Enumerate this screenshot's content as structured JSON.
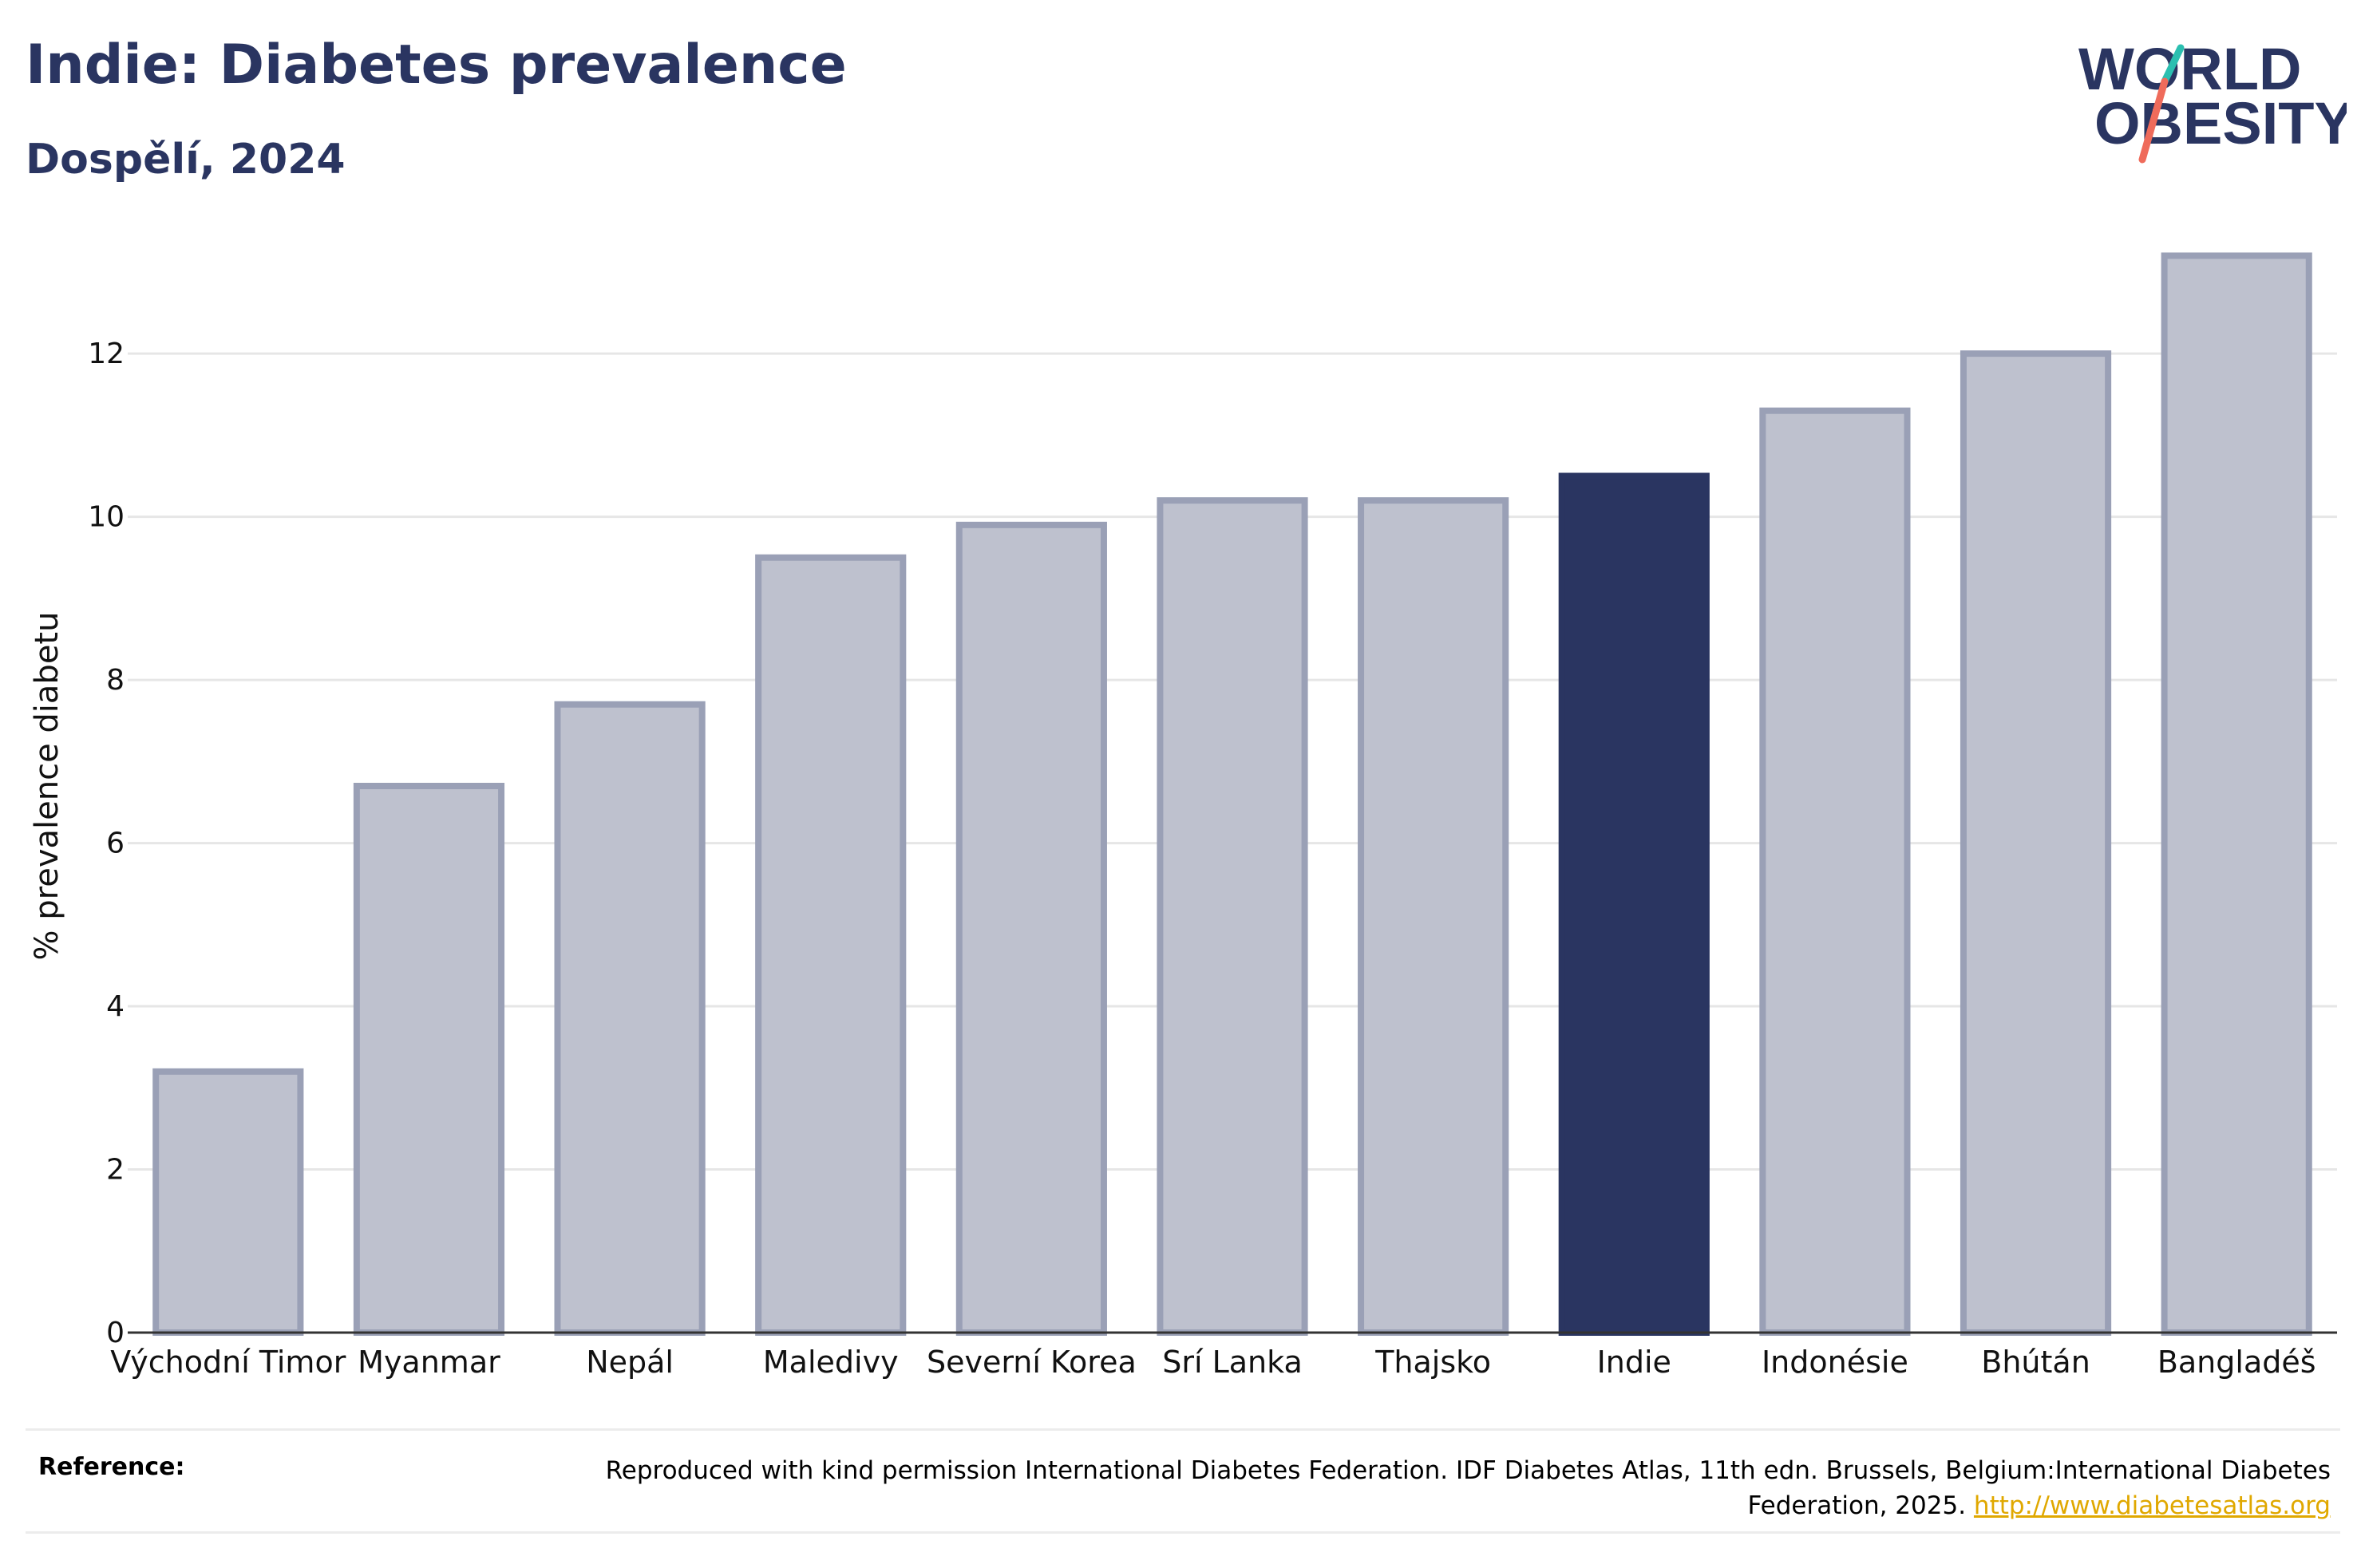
{
  "header": {
    "title": "Indie: Diabetes prevalence",
    "subtitle": "Dospělí, 2024"
  },
  "logo": {
    "line1": "WORLD",
    "line2": "OBESITY",
    "text_color": "#2a3561",
    "slash_top_color": "#2bbfb0",
    "slash_bottom_color": "#ef6b5b"
  },
  "chart_data": {
    "type": "bar",
    "categories": [
      "Východní Timor",
      "Myanmar",
      "Nepál",
      "Maledivy",
      "Severní Korea",
      "Srí Lanka",
      "Thajsko",
      "Indie",
      "Indonésie",
      "Bhútán",
      "Bangladéš"
    ],
    "values": [
      3.2,
      6.7,
      7.7,
      9.5,
      9.9,
      10.2,
      10.2,
      10.5,
      11.3,
      12.0,
      13.2
    ],
    "highlight": "Indie",
    "ylabel": "% prevalence diabetu",
    "xlabel": "",
    "ylim": [
      0,
      13.4
    ],
    "yticks": [
      0,
      2,
      4,
      6,
      8,
      10,
      12
    ],
    "grid": true,
    "colors": {
      "default_fill": "#bec1ce",
      "default_stroke": "#9aa0b6",
      "highlight_fill": "#2a3561"
    }
  },
  "reference": {
    "label": "Reference:",
    "text": "Reproduced with kind permission International Diabetes Federation. IDF Diabetes Atlas, 11th edn. Brussels, Belgium:International Diabetes Federation, 2025.",
    "link": "http://www.diabetesatlas.org"
  }
}
